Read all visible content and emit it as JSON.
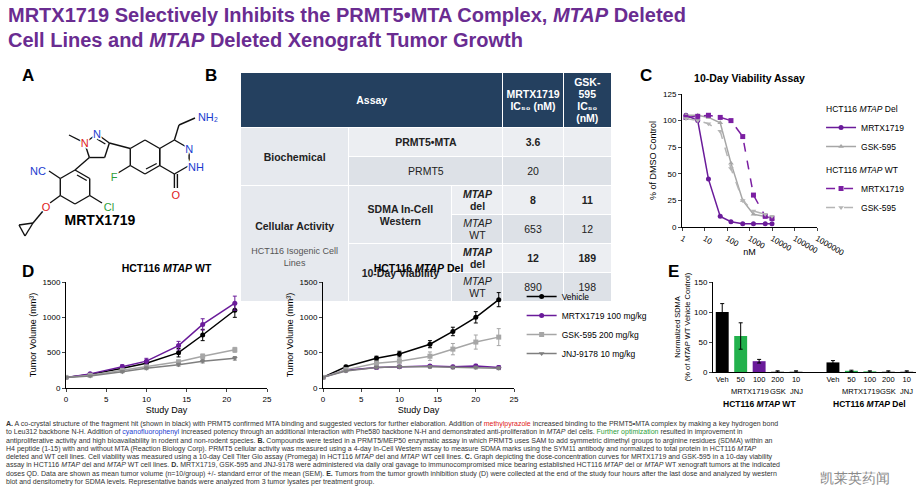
{
  "italic": [
    "MTAP"
  ],
  "title": [
    "MRTX1719 Selectively Inhibits the PRMT5•MTA Complex, MTAP Deleted",
    "Cell Lines and MTAP Deleted Xenograft Tumor Growth"
  ],
  "panel_letters": [
    "A",
    "B",
    "C",
    "D",
    "E"
  ],
  "panel_a": {
    "name": "MRTX1719",
    "labels": [
      {
        "text": "N",
        "color": "#1a3ccf"
      },
      {
        "text": "N",
        "color": "#e0201b"
      },
      {
        "text": "NC",
        "color": "#1a3ccf"
      },
      {
        "text": "O",
        "color": "#e0201b"
      },
      {
        "text": "Cl",
        "color": "#2e9e3a"
      },
      {
        "text": "F",
        "color": "#2e9e3a"
      },
      {
        "text": "NH₂",
        "color": "#1a3ccf"
      },
      {
        "text": "N",
        "color": "#1a3ccf"
      },
      {
        "text": "NH",
        "color": "#1a3ccf"
      },
      {
        "text": "O",
        "color": "#e0201b"
      }
    ]
  },
  "panel_b": {
    "header": [
      [
        "Assay"
      ],
      [
        "MRTX1719",
        "IC₅₀ (nM)"
      ],
      [
        "GSK-595",
        "IC₅₀ (nM)"
      ]
    ],
    "groups": [
      {
        "label": "Biochemical",
        "rows": [
          {
            "assay": "PRMT5•MTA",
            "values": [
              3.6,
              null
            ]
          },
          {
            "assay": "PRMT5",
            "values": [
              20,
              null
            ]
          }
        ]
      },
      {
        "label": "Cellular Activity",
        "sublabel": "HCT116 Isogenic Cell Lines",
        "subgroups": [
          {
            "label": "SDMA In-Cell Western",
            "rows": [
              {
                "line": "MTAP del",
                "values": [
                  8,
                  11
                ]
              },
              {
                "line": "MTAP WT",
                "values": [
                  653,
                  12
                ]
              }
            ]
          },
          {
            "label": "10-Day Viability",
            "rows": [
              {
                "line": "MTAP del",
                "values": [
                  12,
                  189
                ]
              },
              {
                "line": "MTAP WT",
                "values": [
                  890,
                  198
                ]
              }
            ]
          }
        ]
      }
    ]
  },
  "chart_data": [
    {
      "type": "line",
      "title": "10-Day Viability Assay",
      "x_label": "nM",
      "y_label": "% of DMSO Control",
      "log": "x",
      "xlim": [
        1,
        1000000
      ],
      "xticks": [
        1,
        10,
        100,
        1000,
        10000,
        100000,
        1000000
      ],
      "ylim": [
        0,
        125
      ],
      "yticks": [
        0,
        25,
        50,
        75,
        100,
        125
      ],
      "legend": "right",
      "x": [
        1.5,
        5,
        15,
        50,
        150,
        500,
        1500,
        5000,
        10000
      ],
      "series": [
        {
          "group": "HCT116 MTAP Del",
          "name": "MRTX1719",
          "color": "#6a1b9a",
          "marker": "circle",
          "line_style": "solid",
          "values": [
            105,
            100,
            45,
            10,
            5,
            3,
            3,
            3,
            3
          ]
        },
        {
          "group": "HCT116 MTAP Del",
          "name": "GSK-595",
          "color": "#a6a6a6",
          "marker": "triangle-up",
          "line_style": "solid",
          "values": [
            105,
            105,
            103,
            98,
            60,
            25,
            12,
            10,
            8
          ]
        },
        {
          "group": "HCT116 MTAP WT",
          "name": "MRTX1719",
          "color": "#7b1fa2",
          "marker": "square",
          "line_style": "dash",
          "values": [
            103,
            104,
            105,
            103,
            100,
            85,
            30,
            10,
            8
          ]
        },
        {
          "group": "HCT116 MTAP WT",
          "name": "GSK-595",
          "color": "#b5b5b5",
          "marker": "triangle-down",
          "line_style": "dash",
          "values": [
            102,
            100,
            97,
            90,
            55,
            25,
            15,
            12,
            10
          ]
        }
      ]
    },
    {
      "type": "line",
      "title": "HCT116 MTAP WT",
      "x_label": "Study Day",
      "y_label": "Tumor Volume (mm³)",
      "xlim": [
        0,
        25
      ],
      "xticks": [
        0,
        5,
        10,
        15,
        20,
        25
      ],
      "ylim": [
        0,
        1500
      ],
      "yticks": [
        0,
        500,
        1000,
        1500
      ],
      "x": [
        0,
        3,
        7,
        10,
        14,
        17,
        21
      ],
      "series": [
        {
          "name": "Vehicle",
          "color": "#000000",
          "marker": "circle",
          "line_style": "solid",
          "values": [
            150,
            190,
            280,
            350,
            500,
            750,
            1100
          ],
          "errors": [
            10,
            15,
            30,
            40,
            60,
            80,
            100
          ]
        },
        {
          "name": "MRTX1719 100 mg/kg",
          "color": "#6a1b9a",
          "marker": "circle",
          "line_style": "solid",
          "values": [
            150,
            200,
            300,
            380,
            600,
            900,
            1200
          ],
          "errors": [
            10,
            15,
            30,
            40,
            60,
            80,
            100
          ]
        },
        {
          "name": "GSK-595 200 mg/kg",
          "color": "#a6a6a6",
          "marker": "square",
          "line_style": "solid",
          "values": [
            150,
            180,
            250,
            300,
            370,
            450,
            540
          ],
          "errors": [
            8,
            10,
            15,
            20,
            25,
            30,
            35
          ]
        },
        {
          "name": "JNJ-9178 10 mg/kg",
          "color": "#7f7f7f",
          "marker": "triangle-down",
          "line_style": "solid",
          "values": [
            150,
            170,
            230,
            280,
            330,
            380,
            420
          ],
          "errors": [
            8,
            10,
            15,
            20,
            20,
            25,
            25
          ]
        }
      ]
    },
    {
      "type": "line",
      "title": "HCT116 MTAP Del",
      "x_label": "Study Day",
      "y_label": "Tumor Volume (mm³)",
      "xlim": [
        0,
        25
      ],
      "xticks": [
        0,
        5,
        10,
        15,
        20,
        25
      ],
      "ylim": [
        0,
        1500
      ],
      "yticks": [
        0,
        500,
        1000,
        1500
      ],
      "legend": "right",
      "x": [
        0,
        3,
        7,
        10,
        14,
        17,
        20,
        23
      ],
      "series": [
        {
          "name": "Vehicle",
          "color": "#000000",
          "marker": "circle",
          "line_style": "solid",
          "values": [
            150,
            300,
            420,
            480,
            620,
            800,
            1000,
            1250
          ],
          "errors": [
            10,
            20,
            30,
            40,
            50,
            60,
            80,
            100
          ]
        },
        {
          "name": "MRTX1719 100 mg/kg",
          "color": "#6a1b9a",
          "marker": "circle",
          "line_style": "solid",
          "values": [
            150,
            250,
            290,
            300,
            310,
            300,
            310,
            290
          ],
          "errors": [
            10,
            15,
            20,
            20,
            20,
            20,
            25,
            25
          ]
        },
        {
          "name": "GSK-595 200 mg/kg",
          "color": "#a6a6a6",
          "marker": "square",
          "line_style": "solid",
          "values": [
            150,
            260,
            350,
            380,
            450,
            550,
            650,
            720
          ],
          "errors": [
            10,
            20,
            30,
            40,
            60,
            80,
            100,
            120
          ]
        },
        {
          "name": "JNJ-9178 10 mg/kg",
          "color": "#7f7f7f",
          "marker": "triangle-down",
          "line_style": "solid",
          "values": [
            150,
            240,
            290,
            300,
            300,
            290,
            290,
            280
          ],
          "errors": [
            10,
            15,
            20,
            20,
            20,
            20,
            20,
            20
          ]
        }
      ]
    },
    {
      "type": "bar",
      "y_label": [
        "Normalized SDMA",
        "(% of MTAP WT Vehicle Control)"
      ],
      "ylim": [
        0,
        150
      ],
      "yticks": [
        0,
        50,
        100,
        150
      ],
      "categories": [
        "Veh",
        "50",
        "100",
        "200",
        "10",
        null,
        "Veh",
        "50",
        "100",
        "200",
        "10"
      ],
      "values": [
        100,
        60,
        18,
        1,
        1,
        null,
        16,
        2,
        1,
        1,
        1
      ],
      "errors": [
        14,
        22,
        3,
        1,
        1,
        null,
        3,
        1,
        1,
        1,
        1
      ],
      "colors": [
        "#000000",
        "#22b14c",
        "#6a1b9a",
        "#9e9e9e",
        "#9e9e9e",
        null,
        "#000000",
        "#22b14c",
        "#22b14c",
        "#9e9e9e",
        "#9e9e9e"
      ],
      "sub_labels": [
        {
          "label": "MRTX1719",
          "from": 1,
          "to": 2
        },
        {
          "label": "GSK",
          "from": 3,
          "to": 3
        },
        {
          "label": "JNJ",
          "from": 4,
          "to": 4
        },
        {
          "label": "MRTX1719",
          "from": 7,
          "to": 8
        },
        {
          "label": "GSK",
          "from": 9,
          "to": 9
        },
        {
          "label": "JNJ",
          "from": 10,
          "to": 10
        }
      ],
      "groups": [
        {
          "label": "HCT116 MTAP WT",
          "from": 0,
          "to": 4
        },
        {
          "label": "HCT116 MTAP Del",
          "from": 6,
          "to": 10
        }
      ]
    }
  ],
  "caption": [
    {
      "text": "A.",
      "bold": true
    },
    {
      "text": " A co-crystal structure of the fragment hit (shown in black) with PRMT5 confirmed MTA binding and suggested vectors for further elaboration. Addition of "
    },
    {
      "text": "methylpyrazole",
      "color": "#e0201b"
    },
    {
      "text": " increased binding to the PRMT5•MTA complex by making a key hydrogen bond to Leu312 backbone N-H. Addition of "
    },
    {
      "text": "cyanofluorophenyl",
      "color": "#1a3ccf"
    },
    {
      "text": " increased potency through an additional interaction with Phe580 backbone N-H and demonstrated anti-proliferation in MTAP del cells. "
    },
    {
      "text": "Further optimization",
      "color": "#2e9e3a"
    },
    {
      "text": " resulted in improvement in antiproliferative activity and high bioavailability in rodent and non-rodent species. "
    },
    {
      "text": "B.",
      "bold": true
    },
    {
      "text": " Compounds were tested in a PRMT5/MEP50 enzymatic assay in which PRMT5 uses SAM to add symmetric dimethyl groups to arginine residues (SDMA) within an H4 peptide (1-15) with and without MTA (Reaction Biology Corp). PRMT5 cellular activity was measured using a 4-day In-Cell Western assay to measure SDMA marks using the SYM11 antibody and normalized to total protein in HCT116 MTAP deleted and WT cell lines. Cell viability was measured using a 10-day Cell Titer Glo assay (Promega) in HCT116 MTAP del and MTAP WT cell lines. "
    },
    {
      "text": "C.",
      "bold": true
    },
    {
      "text": " Graph depicting the dose-concentration curves for MRTX1719 and GSK-595 in a 10-day viability assay in HCT116 MTAP del and MTAP WT cell lines. "
    },
    {
      "text": "D.",
      "bold": true
    },
    {
      "text": " MRTX1719, GSK-595 and JNJ-9178 were administered via daily oral gavage to immunocompromised mice bearing established HCT116 MTAP del or MTAP WT xenograft tumors at the indicated doses QD. Data are shown as mean tumor volume (n=10/group) +/- standard error of the mean (SEM). "
    },
    {
      "text": "E.",
      "bold": true
    },
    {
      "text": " Tumors from the tumor growth inhibition study (D) were collected at the end of the study four hours after the last dose and analyzed by western blot and densitometry for SDMA levels. Representative bands were analyzed from 3 tumor lysates per treatment group."
    }
  ],
  "watermark": "凯莱英药闻"
}
